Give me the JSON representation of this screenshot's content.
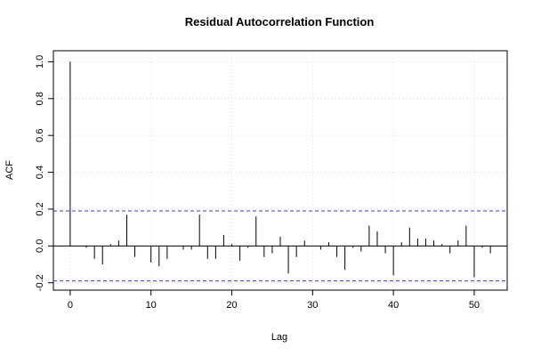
{
  "chart_data": {
    "type": "acf",
    "title": "Residual Autocorrelation Function",
    "x_label": "Lag",
    "y_label": "ACF",
    "x": [
      0,
      1,
      2,
      3,
      4,
      5,
      6,
      7,
      8,
      9,
      10,
      11,
      12,
      13,
      14,
      15,
      16,
      17,
      18,
      19,
      20,
      21,
      22,
      23,
      24,
      25,
      26,
      27,
      28,
      29,
      30,
      31,
      32,
      33,
      34,
      35,
      36,
      37,
      38,
      39,
      40,
      41,
      42,
      43,
      44,
      45,
      46,
      47,
      48,
      49,
      50,
      51,
      52
    ],
    "values": [
      1.0,
      0.0,
      -0.01,
      -0.07,
      -0.1,
      0.01,
      0.03,
      0.17,
      -0.06,
      0.0,
      -0.09,
      -0.11,
      -0.07,
      0.0,
      -0.02,
      -0.02,
      0.17,
      -0.07,
      -0.07,
      0.06,
      0.01,
      -0.08,
      -0.01,
      0.16,
      -0.06,
      -0.04,
      0.05,
      -0.15,
      -0.06,
      0.03,
      0.0,
      -0.02,
      0.02,
      -0.06,
      -0.13,
      -0.01,
      -0.03,
      0.11,
      0.08,
      -0.04,
      -0.16,
      0.02,
      0.1,
      0.04,
      0.04,
      0.03,
      0.01,
      -0.04,
      0.03,
      0.11,
      -0.17,
      -0.01,
      -0.04
    ],
    "color": "#000000",
    "confidence_bounds": [
      -0.19,
      0.19
    ],
    "confidence_color": "#3b3bdd",
    "xlim": [
      -2.08,
      54.08
    ],
    "ylim": [
      -0.24,
      1.06
    ],
    "xticks": [
      0,
      10,
      20,
      30,
      40,
      50
    ],
    "yticks": [
      -0.2,
      {
        "value": 0,
        "label": "0.0"
      },
      0.2,
      0.4,
      0.6,
      0.8,
      {
        "value": 1,
        "label": "1.0"
      }
    ],
    "grid": true
  }
}
